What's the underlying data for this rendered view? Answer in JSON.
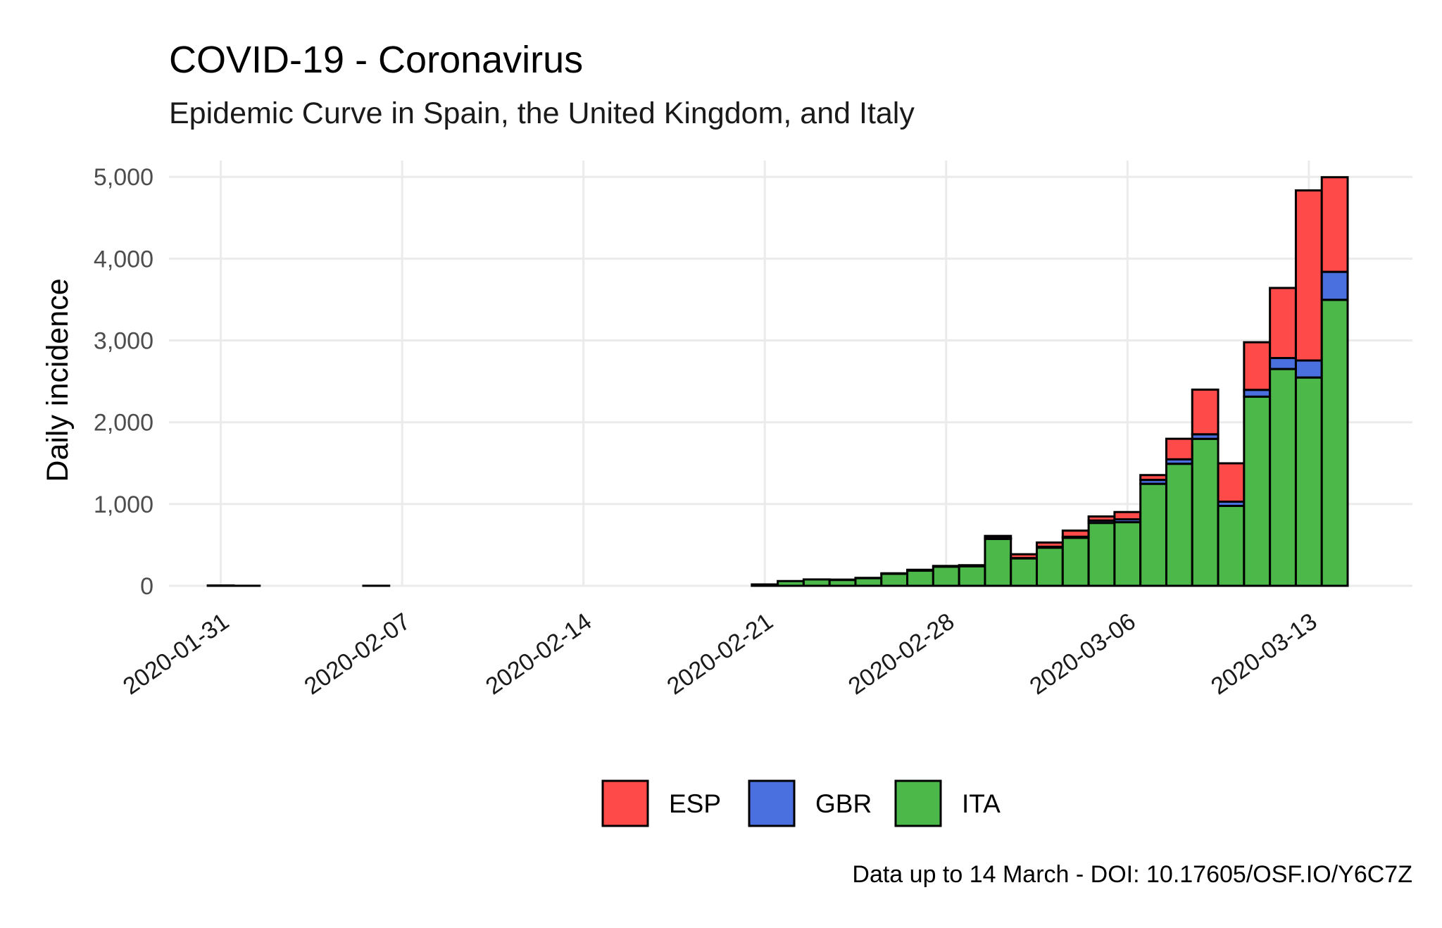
{
  "chart_data": {
    "type": "bar",
    "stacked": true,
    "title": "COVID-19 - Coronavirus",
    "subtitle": "Epidemic Curve in Spain, the United Kingdom, and Italy",
    "xlabel": "",
    "ylabel": "Daily incidence",
    "caption": "Data up to 14 March - DOI: 10.17605/OSF.IO/Y6C7Z",
    "x_range": [
      "2020-01-29",
      "2020-03-17"
    ],
    "ylim": [
      0,
      5200
    ],
    "y_ticks": [
      0,
      1000,
      2000,
      3000,
      4000,
      5000
    ],
    "y_tick_labels": [
      "0",
      "1,000",
      "2,000",
      "3,000",
      "4,000",
      "5,000"
    ],
    "x_ticks": [
      "2020-01-31",
      "2020-02-07",
      "2020-02-14",
      "2020-02-21",
      "2020-02-28",
      "2020-03-06",
      "2020-03-13"
    ],
    "legend_position": "bottom",
    "grid": true,
    "dates": [
      "2020-01-31",
      "2020-02-01",
      "2020-02-02",
      "2020-02-03",
      "2020-02-04",
      "2020-02-05",
      "2020-02-06",
      "2020-02-07",
      "2020-02-08",
      "2020-02-09",
      "2020-02-10",
      "2020-02-11",
      "2020-02-12",
      "2020-02-13",
      "2020-02-14",
      "2020-02-15",
      "2020-02-16",
      "2020-02-17",
      "2020-02-18",
      "2020-02-19",
      "2020-02-20",
      "2020-02-21",
      "2020-02-22",
      "2020-02-23",
      "2020-02-24",
      "2020-02-25",
      "2020-02-26",
      "2020-02-27",
      "2020-02-28",
      "2020-02-29",
      "2020-03-01",
      "2020-03-02",
      "2020-03-03",
      "2020-03-04",
      "2020-03-05",
      "2020-03-06",
      "2020-03-07",
      "2020-03-08",
      "2020-03-09",
      "2020-03-10",
      "2020-03-11",
      "2020-03-12",
      "2020-03-13",
      "2020-03-14"
    ],
    "series": [
      {
        "name": "ITA",
        "color": "#4cb84a",
        "values": [
          2,
          0,
          0,
          0,
          0,
          0,
          1,
          0,
          0,
          0,
          0,
          0,
          0,
          0,
          0,
          0,
          0,
          0,
          0,
          0,
          0,
          17,
          58,
          78,
          72,
          94,
          147,
          185,
          234,
          239,
          573,
          335,
          466,
          587,
          769,
          778,
          1247,
          1492,
          1797,
          977,
          2313,
          2651,
          2547,
          3497
        ]
      },
      {
        "name": "GBR",
        "color": "#4a6fde",
        "values": [
          2,
          0,
          0,
          0,
          0,
          0,
          0,
          0,
          0,
          0,
          0,
          0,
          0,
          0,
          0,
          0,
          0,
          0,
          0,
          0,
          0,
          0,
          0,
          0,
          0,
          0,
          0,
          0,
          0,
          0,
          12,
          4,
          11,
          13,
          29,
          35,
          48,
          55,
          56,
          52,
          83,
          134,
          208,
          342
        ]
      },
      {
        "name": "ESP",
        "color": "#ff4a4a",
        "values": [
          0,
          1,
          0,
          0,
          0,
          0,
          0,
          0,
          0,
          0,
          0,
          0,
          0,
          0,
          0,
          0,
          0,
          0,
          0,
          0,
          0,
          0,
          0,
          0,
          4,
          3,
          6,
          11,
          9,
          13,
          25,
          47,
          52,
          75,
          50,
          89,
          59,
          251,
          546,
          469,
          582,
          857,
          2080,
          1157
        ]
      }
    ]
  }
}
